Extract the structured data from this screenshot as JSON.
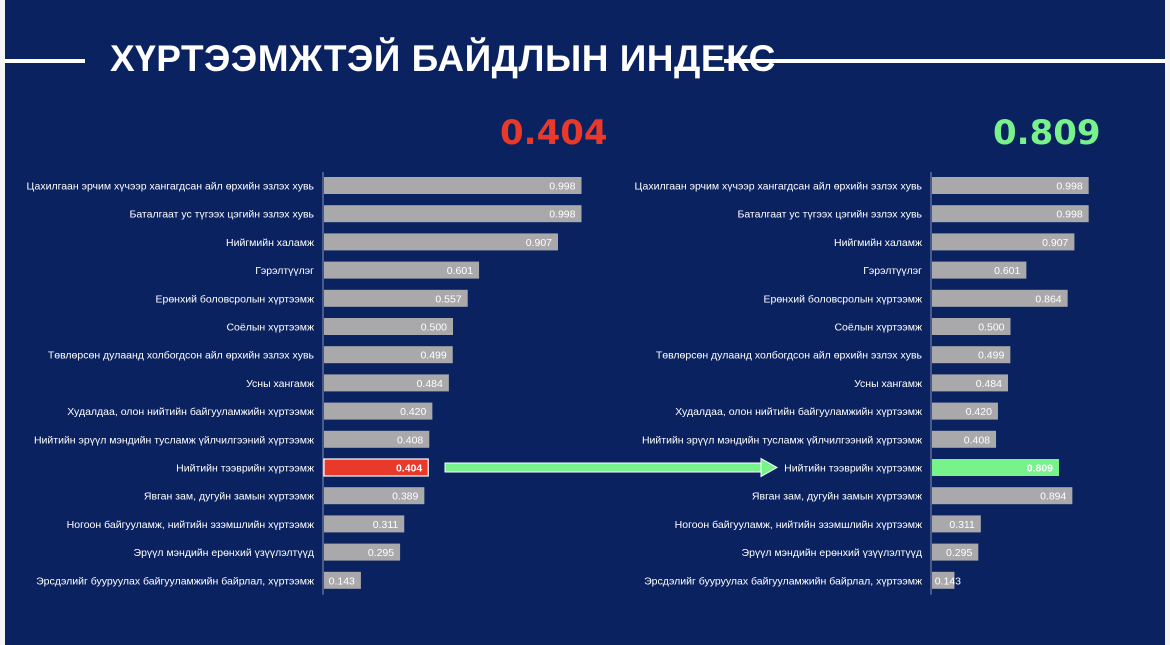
{
  "header": {
    "title": "ХҮРТЭЭМЖТЭЙ БАЙДЛЫН ИНДЕКС"
  },
  "colors": {
    "background": "#0a2260",
    "bar": "#a9a9ab",
    "highlight_left": "#e8392b",
    "highlight_right": "#78f28a",
    "arrow": "#78f28a"
  },
  "chart_data": [
    {
      "type": "bar",
      "orientation": "horizontal",
      "headline": "0.404",
      "headline_color": "#e8392b",
      "xlim": [
        0,
        1
      ],
      "categories": [
        "Цахилгаан эрчим хүчээр хангагдсан айл өрхийн эзлэх хувь",
        "Баталгаат ус түгээх цэгийн эзлэх хувь",
        "Нийгмийн халамж",
        "Гэрэлтүүлэг",
        "Ерөнхий боловсролын хүртээмж",
        "Соёлын хүртээмж",
        "Төвлөрсөн дулаанд холбогдсон айл өрхийн эзлэх хувь",
        "Усны хангамж",
        "Худалдаа, олон нийтийн байгууламжийн хүртээмж",
        "Нийтийн эрүүл мэндийн тусламж үйлчилгээний хүртээмж",
        "Нийтийн тээврийн хүртээмж",
        "Явган зам, дугуйн замын хүртээмж",
        "Ногоон байгууламж, нийтийн эзэмшлийн хүртээмж",
        "Эрүүл мэндийн ерөнхий үзүүлэлтүүд",
        "Эрсдэлийг бууруулах байгууламжийн байрлал, хүртээмж"
      ],
      "values": [
        0.998,
        0.998,
        0.907,
        0.601,
        0.557,
        0.5,
        0.499,
        0.484,
        0.42,
        0.408,
        0.404,
        0.389,
        0.311,
        0.295,
        0.143
      ],
      "value_labels": [
        "0.998",
        "0.998",
        "0.907",
        "0.601",
        "0.557",
        "0.500",
        "0.499",
        "0.484",
        "0.420",
        "0.408",
        "0.404",
        "0.389",
        "0.311",
        "0.295",
        "0.143"
      ],
      "highlight_index": 10,
      "highlight_color": "#e8392b"
    },
    {
      "type": "bar",
      "orientation": "horizontal",
      "headline": "0.809",
      "headline_color": "#78f28a",
      "xlim": [
        0,
        1
      ],
      "categories": [
        "Цахилгаан эрчим хүчээр хангагдсан айл өрхийн эзлэх хувь",
        "Баталгаат ус түгээх цэгийн эзлэх хувь",
        "Нийгмийн халамж",
        "Гэрэлтүүлэг",
        "Ерөнхий боловсролын хүртээмж",
        "Соёлын хүртээмж",
        "Төвлөрсөн дулаанд холбогдсон айл өрхийн эзлэх хувь",
        "Усны хангамж",
        "Худалдаа, олон нийтийн байгууламжийн хүртээмж",
        "Нийтийн эрүүл мэндийн тусламж үйлчилгээний хүртээмж",
        "Нийтийн тээврийн хүртээмж",
        "Явган зам, дугуйн замын хүртээмж",
        "Ногоон байгууламж, нийтийн эзэмшлийн хүртээмж",
        "Эрүүл мэндийн ерөнхий үзүүлэлтүүд",
        "Эрсдэлийг бууруулах байгууламжийн байрлал, хүртээмж"
      ],
      "values": [
        0.998,
        0.998,
        0.907,
        0.601,
        0.864,
        0.5,
        0.499,
        0.484,
        0.42,
        0.408,
        0.809,
        0.894,
        0.311,
        0.295,
        0.143
      ],
      "value_labels": [
        "0.998",
        "0.998",
        "0.907",
        "0.601",
        "0.864",
        "0.500",
        "0.499",
        "0.484",
        "0.420",
        "0.408",
        "0.809",
        "0.894",
        "0.311",
        "0.295",
        "0.143"
      ],
      "highlight_index": 10,
      "highlight_color": "#78f28a"
    }
  ]
}
